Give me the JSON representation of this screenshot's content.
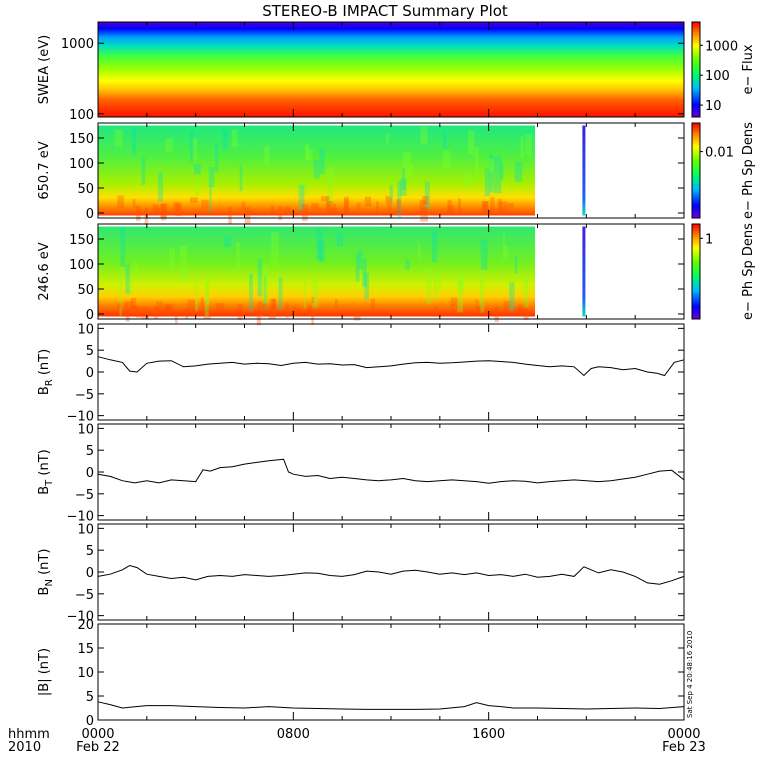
{
  "title": "STEREO-B IMPACT Summary Plot",
  "time_axis": {
    "label_top": "hhmm",
    "label_bottom": "2010",
    "ticks": [
      {
        "hour": 0,
        "top": "0000",
        "bottom": "Feb 22"
      },
      {
        "hour": 8,
        "top": "0800",
        "bottom": ""
      },
      {
        "hour": 16,
        "top": "1600",
        "bottom": ""
      },
      {
        "hour": 24,
        "top": "0000",
        "bottom": "Feb 23"
      }
    ],
    "range_hours": [
      0,
      24
    ]
  },
  "timestamp": "Sat Sep  4 20:48:16 2010",
  "chart_data": [
    {
      "type": "heatmap",
      "id": "swea",
      "ylabel": "SWEA (eV)",
      "yscale": "log",
      "ylim": [
        90,
        2000
      ],
      "yticks": [
        {
          "v": 100,
          "t": "100"
        },
        {
          "v": 1000,
          "t": "1000"
        }
      ],
      "colorbar": {
        "label": "e− Flux",
        "scale": "log",
        "range": [
          4,
          6000
        ],
        "ticks": [
          {
            "v": 10,
            "t": "10"
          },
          {
            "v": 100,
            "t": "100"
          },
          {
            "v": 1000,
            "t": "1000"
          }
        ]
      },
      "data_end_hours": 24
    },
    {
      "type": "heatmap",
      "id": "pad650",
      "ylabel": "650.7 eV",
      "ylim": [
        -10,
        180
      ],
      "yticks": [
        {
          "v": 0,
          "t": "0"
        },
        {
          "v": 50,
          "t": "50"
        },
        {
          "v": 100,
          "t": "100"
        },
        {
          "v": 150,
          "t": "150"
        }
      ],
      "colorbar": {
        "label": "e− Ph Sp Dens",
        "scale": "log",
        "range": [
          0.0004,
          0.04
        ],
        "ticks": [
          {
            "v": 0.01,
            "t": "0.01"
          }
        ]
      },
      "data_end_hours": 17.9,
      "spike_hours": 19.9
    },
    {
      "type": "heatmap",
      "id": "pad246",
      "ylabel": "246.6 eV",
      "ylim": [
        -10,
        180
      ],
      "yticks": [
        {
          "v": 0,
          "t": "0"
        },
        {
          "v": 50,
          "t": "50"
        },
        {
          "v": 100,
          "t": "100"
        },
        {
          "v": 150,
          "t": "150"
        }
      ],
      "colorbar": {
        "label": "e− Ph Sp Dens",
        "scale": "log",
        "range": [
          0.02,
          2
        ],
        "ticks": [
          {
            "v": 1,
            "t": "1"
          }
        ]
      },
      "data_end_hours": 17.9,
      "spike_hours": 19.9
    },
    {
      "type": "line",
      "id": "br",
      "ylabel": "B",
      "ylabel_sub": "R",
      "ylabel_unit": " (nT)",
      "ylim": [
        -11,
        11
      ],
      "yticks": [
        {
          "v": -10,
          "t": "−10"
        },
        {
          "v": -5,
          "t": "−5"
        },
        {
          "v": 0,
          "t": "0"
        },
        {
          "v": 5,
          "t": "5"
        },
        {
          "v": 10,
          "t": "10"
        }
      ],
      "series": [
        {
          "x": [
            0,
            0.5,
            1.0,
            1.3,
            1.6,
            2.0,
            2.5,
            3.0,
            3.5,
            4.0,
            4.5,
            5.0,
            5.5,
            6.0,
            6.5,
            7.0,
            7.5,
            8.0,
            8.5,
            9.0,
            9.5,
            10.0,
            10.5,
            11.0,
            11.5,
            12.0,
            12.5,
            13.0,
            13.5,
            14.0,
            14.5,
            15.0,
            15.5,
            16.0,
            16.5,
            17.0,
            17.5,
            18.0,
            18.5,
            19.0,
            19.5,
            19.9,
            20.2,
            20.5,
            21.0,
            21.5,
            22.0,
            22.5,
            22.9,
            23.2,
            23.6,
            24.0
          ],
          "y": [
            3.5,
            2.8,
            2.2,
            0.2,
            0.0,
            2.0,
            2.5,
            2.6,
            1.2,
            1.4,
            1.8,
            2.0,
            2.2,
            1.8,
            2.0,
            1.9,
            1.5,
            2.0,
            2.2,
            1.8,
            1.9,
            1.6,
            1.7,
            1.0,
            1.2,
            1.4,
            1.8,
            2.1,
            2.2,
            2.0,
            2.1,
            2.3,
            2.5,
            2.6,
            2.4,
            2.2,
            1.8,
            1.5,
            1.2,
            1.4,
            1.2,
            -0.8,
            0.8,
            1.2,
            1.0,
            0.5,
            0.8,
            0.0,
            -0.3,
            -0.8,
            2.2,
            2.8
          ]
        }
      ]
    },
    {
      "type": "line",
      "id": "bt",
      "ylabel": "B",
      "ylabel_sub": "T",
      "ylabel_unit": " (nT)",
      "ylim": [
        -11,
        11
      ],
      "yticks": [
        {
          "v": -10,
          "t": "−10"
        },
        {
          "v": -5,
          "t": "−5"
        },
        {
          "v": 0,
          "t": "0"
        },
        {
          "v": 5,
          "t": "5"
        },
        {
          "v": 10,
          "t": "10"
        }
      ],
      "series": [
        {
          "x": [
            0,
            0.5,
            1.0,
            1.5,
            2.0,
            2.5,
            3.0,
            3.5,
            4.0,
            4.3,
            4.6,
            5.0,
            5.5,
            6.0,
            6.5,
            7.0,
            7.4,
            7.6,
            7.8,
            8.0,
            8.5,
            9.0,
            9.5,
            10.0,
            10.5,
            11.0,
            11.5,
            12.0,
            12.5,
            13.0,
            13.5,
            14.0,
            14.5,
            15.0,
            15.5,
            16.0,
            16.5,
            17.0,
            17.5,
            18.0,
            18.5,
            19.0,
            19.5,
            20.0,
            20.5,
            21.0,
            21.5,
            22.0,
            22.5,
            23.0,
            23.5,
            24.0
          ],
          "y": [
            -0.5,
            -1.0,
            -2.0,
            -2.5,
            -2.0,
            -2.5,
            -1.8,
            -2.0,
            -2.2,
            0.5,
            0.2,
            1.0,
            1.2,
            1.8,
            2.2,
            2.6,
            2.8,
            2.9,
            0.0,
            -0.5,
            -1.0,
            -0.8,
            -1.5,
            -1.2,
            -1.5,
            -1.8,
            -2.0,
            -1.8,
            -1.5,
            -2.0,
            -2.2,
            -2.0,
            -1.8,
            -2.0,
            -2.2,
            -2.6,
            -2.2,
            -2.0,
            -2.1,
            -2.5,
            -2.2,
            -2.0,
            -1.8,
            -2.0,
            -2.2,
            -2.0,
            -1.6,
            -1.2,
            -0.5,
            0.2,
            0.4,
            -1.8
          ]
        }
      ]
    },
    {
      "type": "line",
      "id": "bn",
      "ylabel": "B",
      "ylabel_sub": "N",
      "ylabel_unit": " (nT)",
      "ylim": [
        -11,
        11
      ],
      "yticks": [
        {
          "v": -10,
          "t": "−10"
        },
        {
          "v": -5,
          "t": "−5"
        },
        {
          "v": 0,
          "t": "0"
        },
        {
          "v": 5,
          "t": "5"
        },
        {
          "v": 10,
          "t": "10"
        }
      ],
      "series": [
        {
          "x": [
            0,
            0.5,
            1.0,
            1.3,
            1.6,
            2.0,
            2.5,
            3.0,
            3.5,
            4.0,
            4.5,
            5.0,
            5.5,
            6.0,
            6.5,
            7.0,
            7.5,
            8.0,
            8.5,
            9.0,
            9.5,
            10.0,
            10.5,
            11.0,
            11.5,
            12.0,
            12.5,
            13.0,
            13.5,
            14.0,
            14.5,
            15.0,
            15.5,
            16.0,
            16.5,
            17.0,
            17.5,
            18.0,
            18.5,
            19.0,
            19.5,
            19.9,
            20.2,
            20.5,
            21.0,
            21.5,
            22.0,
            22.5,
            23.0,
            23.5,
            24.0
          ],
          "y": [
            -1.0,
            -0.5,
            0.5,
            1.5,
            1.0,
            -0.5,
            -1.0,
            -1.5,
            -1.2,
            -1.8,
            -1.0,
            -0.8,
            -1.0,
            -0.6,
            -0.8,
            -1.0,
            -0.8,
            -0.5,
            -0.2,
            -0.3,
            -0.8,
            -1.0,
            -0.6,
            0.2,
            0.0,
            -0.5,
            0.2,
            0.4,
            0.0,
            -0.5,
            -0.2,
            -0.6,
            -0.2,
            -0.8,
            -0.6,
            -1.0,
            -0.5,
            -1.2,
            -1.0,
            -0.5,
            -1.0,
            1.2,
            0.5,
            -0.2,
            0.5,
            0.0,
            -1.0,
            -2.5,
            -2.8,
            -2.0,
            -1.0
          ]
        }
      ]
    },
    {
      "type": "line",
      "id": "bmag",
      "ylabel": "|B| (nT)",
      "ylim": [
        0,
        20
      ],
      "yticks": [
        {
          "v": 0,
          "t": "0"
        },
        {
          "v": 5,
          "t": "5"
        },
        {
          "v": 10,
          "t": "10"
        },
        {
          "v": 15,
          "t": "15"
        },
        {
          "v": 20,
          "t": "20"
        }
      ],
      "series": [
        {
          "x": [
            0,
            0.5,
            1.0,
            2.0,
            3.0,
            4.0,
            5.0,
            6.0,
            7.0,
            8.0,
            9.0,
            10.0,
            11.0,
            12.0,
            13.0,
            14.0,
            15.0,
            15.5,
            16.0,
            16.5,
            17.0,
            18.0,
            19.0,
            20.0,
            21.0,
            22.0,
            23.0,
            24.0
          ],
          "y": [
            3.8,
            3.2,
            2.5,
            3.0,
            3.0,
            2.8,
            2.6,
            2.5,
            2.8,
            2.5,
            2.4,
            2.3,
            2.2,
            2.2,
            2.2,
            2.3,
            2.8,
            3.6,
            3.0,
            2.8,
            2.5,
            2.5,
            2.4,
            2.3,
            2.4,
            2.5,
            2.4,
            2.8
          ]
        }
      ]
    }
  ]
}
